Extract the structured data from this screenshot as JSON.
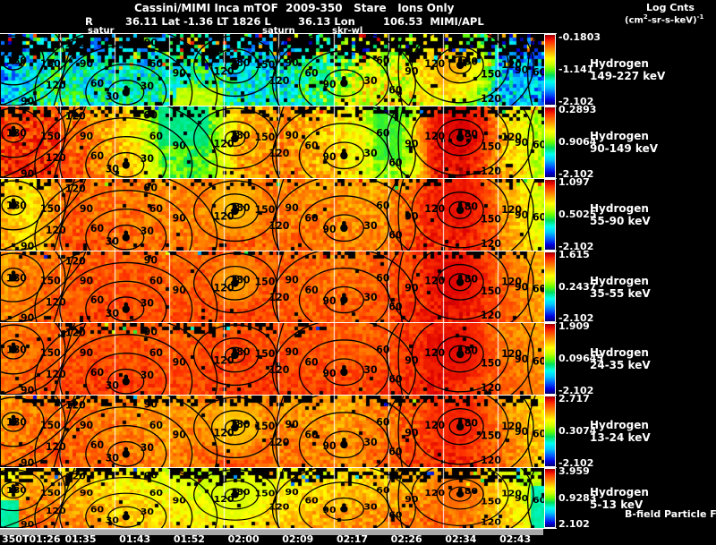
{
  "header": {
    "title": "Cassini/MIMI Inca mTOF  2009-350   Stare   Ions Only",
    "log_cnts": "Log Cnts",
    "units_prefix": "(cm",
    "units_sup1": "2",
    "units_mid": "-sr-s-keV)",
    "units_sup2": "-1",
    "line2_r": "R",
    "line2_lat": "36.11 Lat -1.36 LT 1826 L",
    "line2_lon": "36.13 Lon",
    "line2_l": "106.53  MIMI/APL"
  },
  "markers": {
    "satur": "satur",
    "saturn": "saturn",
    "skr": "skr-wl"
  },
  "chart_data": {
    "type": "heatmap",
    "title": "Cassini/MIMI Inca mTOF 2009-350 Stare Ions Only",
    "subtitle": "R 36.11 Lat -1.36 LT 1826 L 36.13 Lon 106.53 MIMI/APL",
    "colorbar_title": "Log Cnts (cm2-sr-s-keV)-1",
    "x_axis": {
      "ticks": [
        "350T01:26",
        "01:35",
        "01:43",
        "01:52",
        "02:00",
        "02:09",
        "02:17",
        "02:26",
        "02:34",
        "02:43"
      ]
    },
    "contour_label_values": [
      30,
      60,
      90,
      120,
      150,
      180
    ],
    "bfield_label": "B-field Particle Flow",
    "panels": [
      {
        "species": "Hydrogen",
        "energy": "149-227 keV",
        "scale_top": "-0.1803",
        "scale_mid": "-1.141",
        "scale_bottom": "-2.102",
        "render": {
          "noise": 0.3,
          "vgrad": 0.1,
          "profile": [
            [
              0,
              0.2
            ],
            [
              0.05,
              0.3
            ],
            [
              0.1,
              0.4
            ],
            [
              0.18,
              0.3
            ],
            [
              0.28,
              0.33
            ],
            [
              0.36,
              0.42
            ],
            [
              0.44,
              0.3
            ],
            [
              0.52,
              0.3
            ],
            [
              0.6,
              0.45
            ],
            [
              0.66,
              0.58
            ],
            [
              0.72,
              0.62
            ],
            [
              0.8,
              0.55
            ],
            [
              0.86,
              0.45
            ],
            [
              0.92,
              0.25
            ],
            [
              1,
              0.2
            ]
          ],
          "top_black": {
            "frac": 0.34,
            "prob": 0.8,
            "speckle": 0.2
          },
          "speckle_all": 0.02,
          "features": [
            {
              "type": "blob",
              "u": 0.83,
              "w": 0.4,
              "r": 0.75,
              "v": 0.8
            },
            {
              "type": "rect",
              "u0": 0.32,
              "u1": 0.41,
              "w0": 0.75,
              "w1": 1,
              "v": 0.62
            }
          ]
        }
      },
      {
        "species": "Hydrogen",
        "energy": "90-149 keV",
        "scale_top": "0.2893",
        "scale_mid": "0.9064",
        "scale_bottom": "-2.102",
        "render": {
          "noise": 0.16,
          "vgrad": 0.05,
          "profile": [
            [
              0,
              0.88
            ],
            [
              0.07,
              0.9
            ],
            [
              0.15,
              0.82
            ],
            [
              0.24,
              0.7
            ],
            [
              0.3,
              0.48
            ],
            [
              0.37,
              0.45
            ],
            [
              0.44,
              0.75
            ],
            [
              0.52,
              0.8
            ],
            [
              0.6,
              0.72
            ],
            [
              0.66,
              0.65
            ],
            [
              0.7,
              0.5
            ],
            [
              0.75,
              0.55
            ],
            [
              0.8,
              0.88
            ],
            [
              0.85,
              0.92
            ],
            [
              0.9,
              0.8
            ],
            [
              0.95,
              0.68
            ],
            [
              1,
              0.55
            ]
          ],
          "top_black": {
            "frac": 0.12,
            "prob": 0.5,
            "speckle": 0.06
          },
          "speckle_all": 0.01,
          "features": [
            {
              "type": "blob",
              "u": 0.84,
              "w": 0.35,
              "r": 0.7,
              "v": 0.97
            },
            {
              "type": "rect",
              "u0": 0.29,
              "u1": 0.38,
              "w0": 0,
              "w1": 0.55,
              "v": 0.38
            },
            {
              "type": "rect",
              "u0": 0.69,
              "u1": 0.74,
              "w0": 0,
              "w1": 0.75,
              "v": 0.45
            }
          ]
        }
      },
      {
        "species": "Hydrogen",
        "energy": "55-90 keV",
        "scale_top": "1.097",
        "scale_mid": "0.5025",
        "scale_bottom": "-2.102",
        "render": {
          "noise": 0.12,
          "vgrad": 0.04,
          "profile": [
            [
              0,
              0.75
            ],
            [
              0.05,
              0.68
            ],
            [
              0.12,
              0.85
            ],
            [
              0.22,
              0.83
            ],
            [
              0.32,
              0.8
            ],
            [
              0.42,
              0.83
            ],
            [
              0.52,
              0.82
            ],
            [
              0.62,
              0.8
            ],
            [
              0.7,
              0.78
            ],
            [
              0.78,
              0.88
            ],
            [
              0.86,
              0.9
            ],
            [
              0.92,
              0.8
            ],
            [
              0.97,
              0.68
            ],
            [
              1,
              0.6
            ]
          ],
          "top_black": {
            "frac": 0.08,
            "prob": 0.35,
            "speckle": 0.05
          },
          "speckle_all": 0.008,
          "features": [
            {
              "type": "blob",
              "u": 0.84,
              "w": 0.35,
              "r": 0.65,
              "v": 0.95
            },
            {
              "type": "blob",
              "u": 0.43,
              "w": 0.4,
              "r": 0.5,
              "v": 0.72
            }
          ]
        }
      },
      {
        "species": "Hydrogen",
        "energy": "35-55 keV",
        "scale_top": "1.615",
        "scale_mid": "0.2437",
        "scale_bottom": "-2.102",
        "render": {
          "noise": 0.1,
          "vgrad": 0.03,
          "profile": [
            [
              0,
              0.78
            ],
            [
              0.08,
              0.84
            ],
            [
              0.18,
              0.87
            ],
            [
              0.3,
              0.85
            ],
            [
              0.42,
              0.87
            ],
            [
              0.54,
              0.85
            ],
            [
              0.64,
              0.83
            ],
            [
              0.74,
              0.88
            ],
            [
              0.84,
              0.93
            ],
            [
              0.92,
              0.85
            ],
            [
              1,
              0.75
            ]
          ],
          "top_black": {
            "frac": 0.07,
            "prob": 0.3,
            "speckle": 0.04
          },
          "speckle_all": 0.006,
          "features": [
            {
              "type": "blob",
              "u": 0.84,
              "w": 0.35,
              "r": 0.6,
              "v": 0.96
            },
            {
              "type": "blob",
              "u": 0.43,
              "w": 0.42,
              "r": 0.45,
              "v": 0.75
            }
          ]
        }
      },
      {
        "species": "Hydrogen",
        "energy": "24-35 keV",
        "scale_top": "1.909",
        "scale_mid": "0.09645",
        "scale_bottom": "-2.102",
        "render": {
          "noise": 0.09,
          "vgrad": 0.03,
          "profile": [
            [
              0,
              0.82
            ],
            [
              0.1,
              0.86
            ],
            [
              0.2,
              0.88
            ],
            [
              0.32,
              0.86
            ],
            [
              0.44,
              0.88
            ],
            [
              0.56,
              0.87
            ],
            [
              0.68,
              0.86
            ],
            [
              0.8,
              0.92
            ],
            [
              0.9,
              0.85
            ],
            [
              1,
              0.78
            ]
          ],
          "top_black": {
            "frac": 0.13,
            "prob": 0.4,
            "speckle": 0.05,
            "u0": 0.1,
            "u1": 0.6
          },
          "speckle_all": 0.008,
          "features": [
            {
              "type": "blob",
              "u": 0.84,
              "w": 0.35,
              "r": 0.6,
              "v": 0.96
            }
          ]
        }
      },
      {
        "species": "Hydrogen",
        "energy": "13-24 keV",
        "scale_top": "2.717",
        "scale_mid": "0.3074",
        "scale_bottom": "-2.102",
        "render": {
          "noise": 0.12,
          "vgrad": 0.04,
          "profile": [
            [
              0,
              0.8
            ],
            [
              0.1,
              0.84
            ],
            [
              0.2,
              0.82
            ],
            [
              0.3,
              0.78
            ],
            [
              0.42,
              0.83
            ],
            [
              0.54,
              0.8
            ],
            [
              0.64,
              0.78
            ],
            [
              0.74,
              0.85
            ],
            [
              0.84,
              0.9
            ],
            [
              0.92,
              0.82
            ],
            [
              1,
              0.7
            ]
          ],
          "top_black": {
            "frac": 0.11,
            "prob": 0.4,
            "speckle": 0.05
          },
          "speckle_all": 0.01,
          "features": [
            {
              "type": "blob",
              "u": 0.84,
              "w": 0.35,
              "r": 0.6,
              "v": 0.93
            },
            {
              "type": "blob",
              "u": 0.43,
              "w": 0.42,
              "r": 0.5,
              "v": 0.7
            }
          ]
        }
      },
      {
        "species": "Hydrogen",
        "energy": "5-13 keV",
        "scale_top": "3.959",
        "scale_mid": "0.9283",
        "scale_bottom": "2.102",
        "render": {
          "noise": 0.13,
          "vgrad": 0.1,
          "profile": [
            [
              0,
              0.72
            ],
            [
              0.06,
              0.8
            ],
            [
              0.14,
              0.76
            ],
            [
              0.22,
              0.7
            ],
            [
              0.3,
              0.66
            ],
            [
              0.38,
              0.62
            ],
            [
              0.46,
              0.66
            ],
            [
              0.54,
              0.7
            ],
            [
              0.62,
              0.74
            ],
            [
              0.72,
              0.76
            ],
            [
              0.8,
              0.8
            ],
            [
              0.88,
              0.76
            ],
            [
              0.95,
              0.65
            ],
            [
              1,
              0.55
            ]
          ],
          "top_black": {
            "frac": 0.2,
            "prob": 0.6,
            "speckle": 0.08
          },
          "speckle_all": 0.015,
          "features": [
            {
              "type": "blob",
              "u": 0.43,
              "w": 0.4,
              "r": 0.6,
              "v": 0.6
            },
            {
              "type": "blob",
              "u": 0.84,
              "w": 0.35,
              "r": 0.55,
              "v": 0.85
            },
            {
              "type": "rect",
              "u0": 0,
              "u1": 0.03,
              "w0": 0.55,
              "w1": 1,
              "v": 0.25
            },
            {
              "type": "rect",
              "u0": 0.975,
              "u1": 1,
              "w0": 0.3,
              "w1": 1,
              "v": 0.3
            }
          ]
        }
      }
    ],
    "colormap": [
      [
        0,
        "#00006e"
      ],
      [
        0.07,
        "#0000e0"
      ],
      [
        0.16,
        "#0066ff"
      ],
      [
        0.25,
        "#00ccff"
      ],
      [
        0.33,
        "#00ffee"
      ],
      [
        0.42,
        "#00e060"
      ],
      [
        0.5,
        "#66ff00"
      ],
      [
        0.58,
        "#ccff00"
      ],
      [
        0.66,
        "#ffff00"
      ],
      [
        0.74,
        "#ffbb00"
      ],
      [
        0.82,
        "#ff7700"
      ],
      [
        0.9,
        "#ff3300"
      ],
      [
        0.96,
        "#dd0000"
      ],
      [
        1,
        "#8f0000"
      ]
    ],
    "contours": {
      "labels": [
        [
          "180",
          6,
          23
        ],
        [
          "150",
          44,
          26
        ],
        [
          "120",
          50,
          49
        ],
        [
          "90",
          22,
          66
        ],
        [
          "120",
          72,
          5
        ],
        [
          "90",
          88,
          26
        ],
        [
          "60",
          100,
          47
        ],
        [
          "30",
          117,
          61
        ],
        [
          "30",
          156,
          50
        ],
        [
          "60",
          166,
          26
        ],
        [
          "90",
          160,
          4
        ],
        [
          "90",
          192,
          36
        ],
        [
          "120",
          238,
          34
        ],
        [
          "180",
          256,
          25
        ],
        [
          "150",
          284,
          27
        ],
        [
          "120",
          300,
          44
        ],
        [
          "90",
          318,
          25
        ],
        [
          "60",
          340,
          36
        ],
        [
          "90",
          360,
          48
        ],
        [
          "30",
          406,
          44
        ],
        [
          "60",
          420,
          23
        ],
        [
          "60",
          434,
          54
        ],
        [
          "90",
          452,
          34
        ],
        [
          "120",
          474,
          26
        ],
        [
          "180",
          511,
          24
        ],
        [
          "150",
          537,
          37
        ],
        [
          "120",
          537,
          63
        ],
        [
          "120",
          560,
          27
        ],
        [
          "90",
          575,
          33
        ],
        [
          "60",
          595,
          35
        ]
      ],
      "dots": [
        [
          14,
          28
        ],
        [
          140,
          62
        ],
        [
          262,
          34
        ],
        [
          384,
          52
        ],
        [
          514,
          33
        ]
      ],
      "ellipses": [
        [
          14,
          28,
          13,
          10
        ],
        [
          14,
          28,
          34,
          26
        ],
        [
          14,
          28,
          58,
          48
        ],
        [
          140,
          62,
          20,
          13
        ],
        [
          140,
          62,
          45,
          30
        ],
        [
          140,
          62,
          74,
          50
        ],
        [
          140,
          62,
          102,
          70
        ],
        [
          262,
          34,
          11,
          8
        ],
        [
          262,
          34,
          26,
          18
        ],
        [
          262,
          34,
          46,
          32
        ],
        [
          384,
          52,
          22,
          14
        ],
        [
          384,
          52,
          50,
          34
        ],
        [
          384,
          52,
          80,
          56
        ],
        [
          514,
          33,
          12,
          9
        ],
        [
          514,
          33,
          26,
          19
        ],
        [
          514,
          33,
          54,
          40
        ],
        [
          514,
          33,
          82,
          60
        ]
      ],
      "paths": [
        "M -6 78 C 20 70 52 52 74 30 C 88 16 94 4 96 -4",
        "M 84 -4 C 76 18 70 44 58 80",
        "M 318 -4 C 308 20 304 48 312 80",
        "M 452 -4 C 444 16 442 44 450 80",
        "M 600 -4 C 588 20 586 50 596 80"
      ]
    }
  }
}
